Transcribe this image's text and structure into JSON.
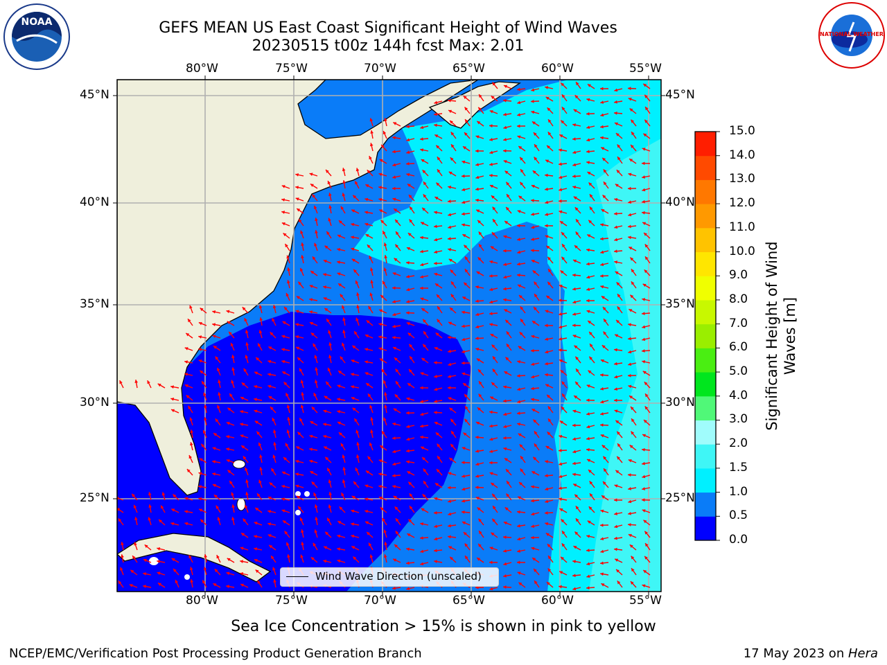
{
  "title": {
    "line1": "GEFS MEAN US East Coast Significant Height of Wind Waves",
    "line2": "20230515 t00z 144h fcst   Max: 2.01"
  },
  "logos": {
    "left": {
      "text": "NOAA",
      "icon": "noaa-logo"
    },
    "right": {
      "text": "NATIONAL WEATHER SERVICE",
      "icon": "nws-logo"
    }
  },
  "axes": {
    "lon_labels": [
      "80°W",
      "75°W",
      "70°W",
      "65°W",
      "60°W",
      "55°W"
    ],
    "lat_labels": [
      "45°N",
      "40°N",
      "35°N",
      "30°N",
      "25°N"
    ]
  },
  "legend": {
    "wind_label": "Wind Wave Direction (unscaled)"
  },
  "colorbar": {
    "title": "Significant Height of Wind Waves [m]",
    "tick_labels": [
      "0.0",
      "0.5",
      "1.0",
      "1.5",
      "2.0",
      "3.0",
      "4.0",
      "5.0",
      "6.0",
      "7.0",
      "8.0",
      "9.0",
      "10.0",
      "11.0",
      "12.0",
      "13.0",
      "14.0",
      "15.0"
    ],
    "colors": [
      "#0000ff",
      "#0a7cf8",
      "#00f0ff",
      "#3ff6f6",
      "#a0fcfc",
      "#50f878",
      "#00e61e",
      "#4aee12",
      "#9aee00",
      "#c8f800",
      "#f0ff00",
      "#ffe600",
      "#ffc300",
      "#ff9900",
      "#ff7800",
      "#ff4a00",
      "#ff1e00",
      "#ff0000"
    ]
  },
  "caption": "Sea Ice Concentration > 15% is shown in pink to yellow",
  "footer": {
    "left": "NCEP/EMC/Verification Post Processing Product Generation Branch",
    "right_date": "17 May 2023 on ",
    "right_machine": "Hera"
  },
  "colors": {
    "land": "#efefdc",
    "arrow": "#ff0000",
    "grid": "#b0b0b0",
    "wave_low": "#0000ff",
    "wave_mid": "#0a7cf8",
    "wave_high": "#00f0ff",
    "wave_top": "#3ff6f6"
  }
}
